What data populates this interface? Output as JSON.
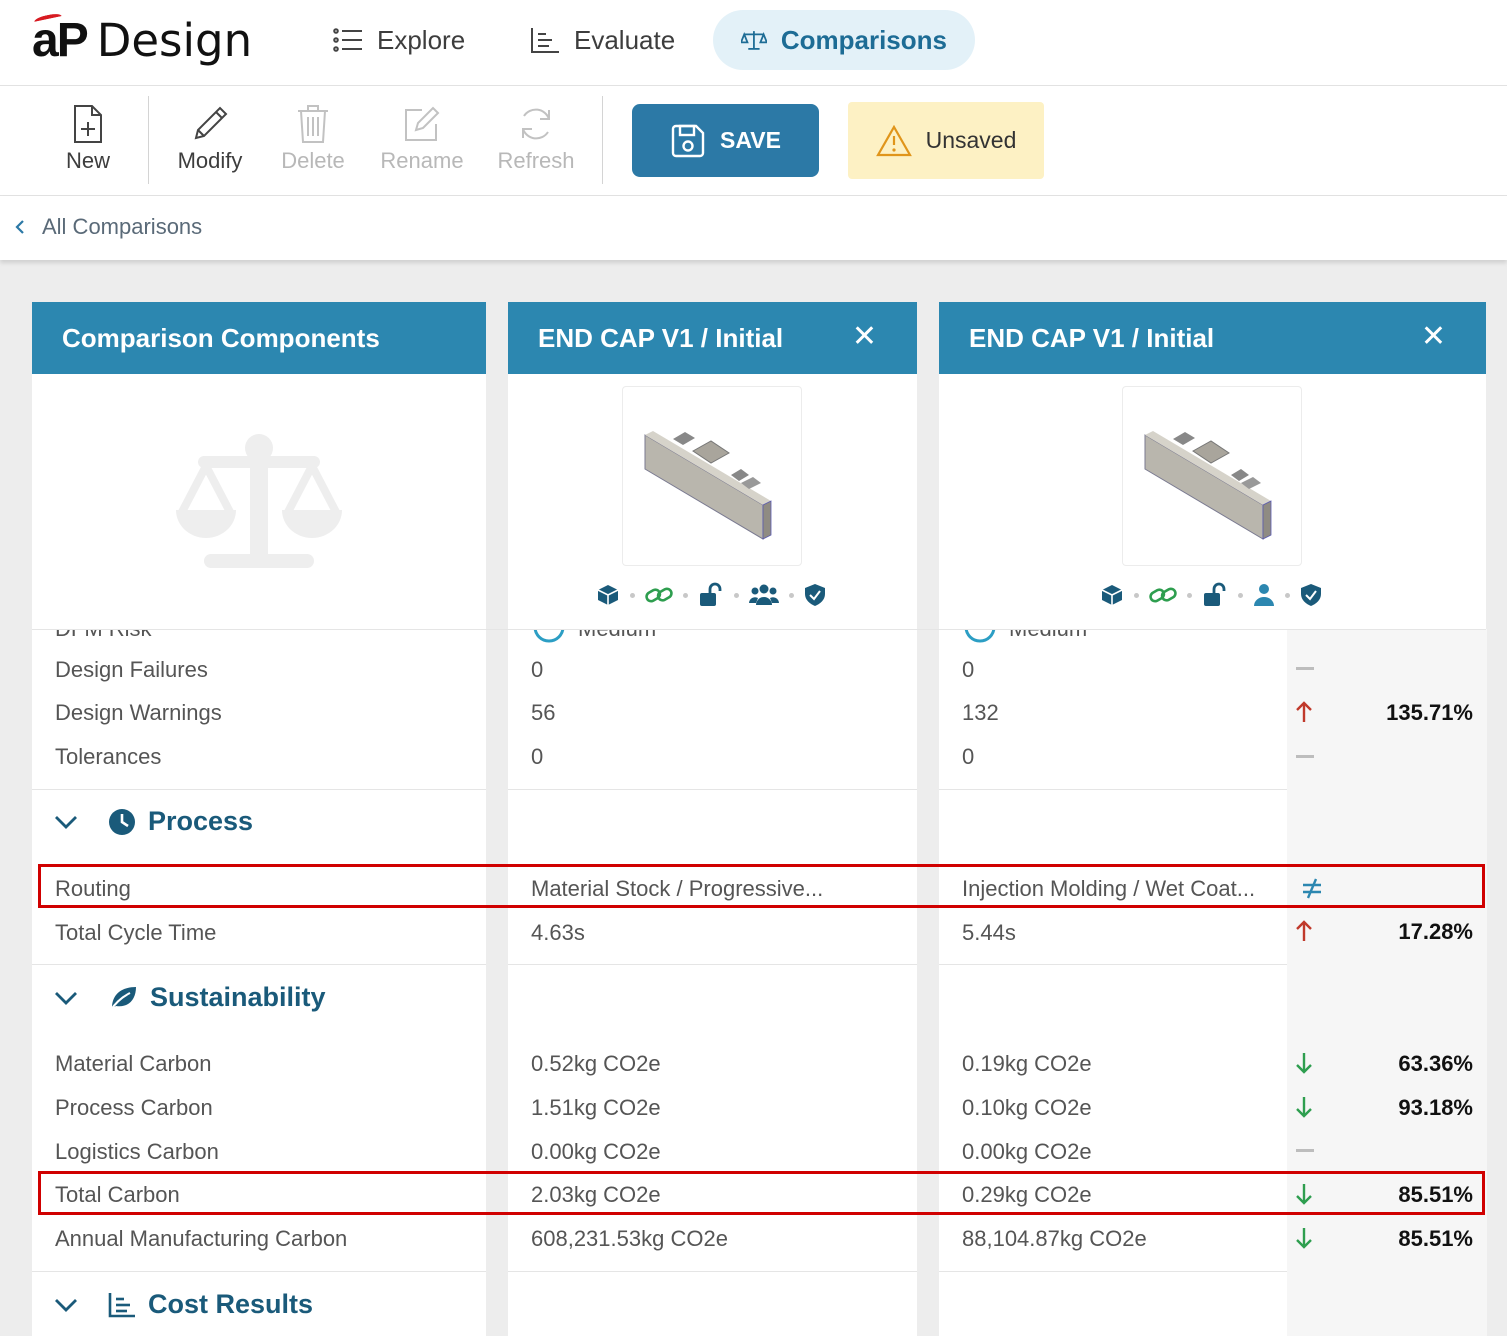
{
  "app": {
    "logo_mark": "aP",
    "logo_word": "Design"
  },
  "nav": {
    "explore": "Explore",
    "evaluate": "Evaluate",
    "comparisons": "Comparisons"
  },
  "toolbar": {
    "new": "New",
    "modify": "Modify",
    "delete": "Delete",
    "rename": "Rename",
    "refresh": "Refresh",
    "save": "SAVE",
    "unsaved": "Unsaved"
  },
  "breadcrumb": {
    "back": "All Comparisons"
  },
  "columns": {
    "components_title": "Comparison Components",
    "part1_title": "END CAP V1 / Initial",
    "part2_title": "END CAP V1 / Initial",
    "close_glyph": "✕"
  },
  "dfm": {
    "label_partial": "DFM Risk",
    "part1_partial": "Medium",
    "part2_partial": "Medium"
  },
  "design_rows": [
    {
      "label": "Design Failures",
      "part1": "0",
      "part2": "0",
      "change": "none",
      "pct": ""
    },
    {
      "label": "Design Warnings",
      "part1": "56",
      "part2": "132",
      "change": "up",
      "pct": "135.71%"
    },
    {
      "label": "Tolerances",
      "part1": "0",
      "part2": "0",
      "change": "none",
      "pct": ""
    }
  ],
  "process": {
    "title": "Process",
    "rows": [
      {
        "label": "Routing",
        "part1": "Material Stock / Progressive...",
        "part2": "Injection Molding / Wet Coat...",
        "change": "not-equal",
        "pct": ""
      },
      {
        "label": "Total Cycle Time",
        "part1": "4.63s",
        "part2": "5.44s",
        "change": "up",
        "pct": "17.28%"
      }
    ]
  },
  "sustainability": {
    "title": "Sustainability",
    "rows": [
      {
        "label": "Material Carbon",
        "part1": "0.52kg CO2e",
        "part2": "0.19kg CO2e",
        "change": "down",
        "pct": "63.36%"
      },
      {
        "label": "Process Carbon",
        "part1": "1.51kg CO2e",
        "part2": "0.10kg CO2e",
        "change": "down",
        "pct": "93.18%"
      },
      {
        "label": "Logistics Carbon",
        "part1": "0.00kg CO2e",
        "part2": "0.00kg CO2e",
        "change": "none",
        "pct": ""
      },
      {
        "label": "Total Carbon",
        "part1": "2.03kg CO2e",
        "part2": "0.29kg CO2e",
        "change": "down",
        "pct": "85.51%"
      },
      {
        "label": "Annual Manufacturing Carbon",
        "part1": "608,231.53kg CO2e",
        "part2": "88,104.87kg CO2e",
        "change": "down",
        "pct": "85.51%"
      }
    ]
  },
  "cost": {
    "title": "Cost Results"
  },
  "colors": {
    "header_blue": "#2c87b0",
    "save_blue": "#2c79a6",
    "section_text": "#1a5a7a",
    "up_red": "#c0392b",
    "down_green": "#2e9e4f",
    "highlight_red": "#d00000",
    "unsaved_bg": "#fdf1c4"
  },
  "icons": {
    "part1": [
      "cube-icon",
      "link-icon",
      "unlock-icon",
      "users-icon",
      "shield-icon"
    ],
    "part2": [
      "cube-icon",
      "link-icon",
      "unlock-icon",
      "user-icon",
      "shield-icon"
    ]
  }
}
